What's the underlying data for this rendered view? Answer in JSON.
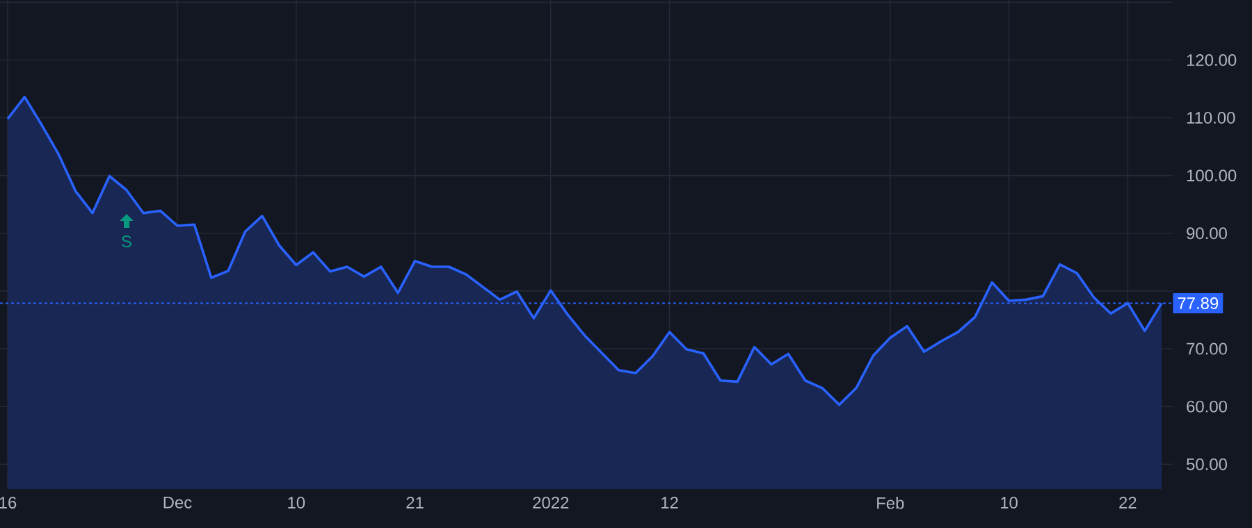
{
  "chart_data": {
    "type": "area",
    "categories": [
      "16",
      null,
      null,
      null,
      null,
      null,
      null,
      null,
      null,
      null,
      "Dec",
      null,
      null,
      null,
      null,
      null,
      null,
      "10",
      null,
      null,
      null,
      null,
      null,
      null,
      "21",
      null,
      null,
      null,
      null,
      null,
      null,
      null,
      "2022",
      null,
      null,
      null,
      null,
      null,
      null,
      "12",
      null,
      null,
      null,
      null,
      null,
      null,
      null,
      null,
      null,
      null,
      null,
      null,
      "Feb",
      null,
      null,
      null,
      null,
      null,
      null,
      "10",
      null,
      null,
      null,
      null,
      null,
      null,
      "22",
      null,
      null
    ],
    "series": [
      {
        "color": "#2962ff",
        "values": [
          109.8,
          113.6,
          108.8,
          103.7,
          97.3,
          93.5,
          99.9,
          97.5,
          93.5,
          93.9,
          91.3,
          91.5,
          82.3,
          83.5,
          90.3,
          93.0,
          87.9,
          84.5,
          86.7,
          83.4,
          84.2,
          82.5,
          84.2,
          79.7,
          85.2,
          84.2,
          84.2,
          82.9,
          80.7,
          78.5,
          79.9,
          75.3,
          80.1,
          75.9,
          72.3,
          69.3,
          66.3,
          65.8,
          68.7,
          72.9,
          69.9,
          69.2,
          64.5,
          64.3,
          70.3,
          67.3,
          69.1,
          64.5,
          63.2,
          60.3,
          63.2,
          68.8,
          71.9,
          73.9,
          69.5,
          71.3,
          72.9,
          75.5,
          81.5,
          78.3,
          78.5,
          79.1,
          84.6,
          83.1,
          78.9,
          76.1,
          77.9,
          73.1,
          77.9
        ]
      }
    ],
    "ylim": [
      45.7,
      130.4
    ],
    "yticks": [
      {
        "value": 50,
        "label": "50.00"
      },
      {
        "value": 60,
        "label": "60.00"
      },
      {
        "value": 70,
        "label": "70.00"
      },
      {
        "value": 80,
        "label": null
      },
      {
        "value": 90,
        "label": "90.00"
      },
      {
        "value": 100,
        "label": "100.00"
      },
      {
        "value": 110,
        "label": "110.00"
      },
      {
        "value": 120,
        "label": "120.00"
      },
      {
        "value": 130,
        "label": null
      }
    ],
    "ref_lines": [
      {
        "axis": "y",
        "value": 77.89,
        "label": "77.89",
        "color": "#2962ff",
        "line_style": "dotted"
      }
    ],
    "annotations": [
      "S"
    ],
    "grid": true
  }
}
